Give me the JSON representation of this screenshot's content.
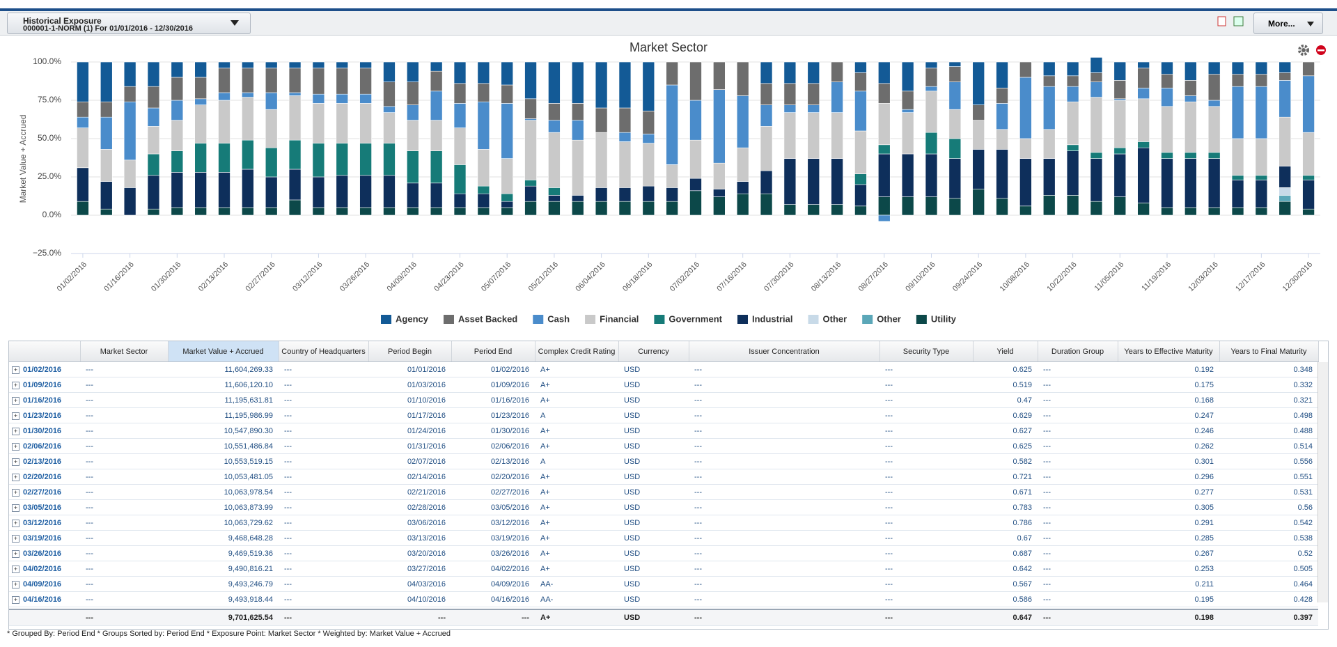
{
  "header": {
    "title": "Historical Exposure",
    "subtitle": "000001-1-NORM (1) For 01/01/2016 - 12/30/2016",
    "more": "More..."
  },
  "chart_data": {
    "type": "bar",
    "stacked": true,
    "title": "Market Sector",
    "y_label": "Market Value + Accrued",
    "categories": [
      "01/02/2016",
      null,
      "01/16/2016",
      null,
      "01/30/2016",
      null,
      "02/13/2016",
      null,
      "02/27/2016",
      null,
      "03/12/2016",
      null,
      "03/26/2016",
      null,
      "04/09/2016",
      null,
      "04/23/2016",
      null,
      "05/07/2016",
      null,
      "05/21/2016",
      null,
      "06/04/2016",
      null,
      "06/18/2016",
      null,
      "07/02/2016",
      null,
      "07/16/2016",
      null,
      "07/30/2016",
      null,
      "08/13/2016",
      null,
      "08/27/2016",
      null,
      "09/10/2016",
      null,
      "09/24/2016",
      null,
      "10/08/2016",
      null,
      "10/22/2016",
      null,
      "11/05/2016",
      null,
      "11/19/2016",
      null,
      "12/03/2016",
      null,
      "12/17/2016",
      null,
      "12/30/2016"
    ],
    "ylim": [
      -25,
      100
    ],
    "yticks": [
      {
        "value": -25,
        "label": "−25.0%"
      },
      {
        "value": 0,
        "label": "0.0%"
      },
      {
        "value": 25,
        "label": "25.0%"
      },
      {
        "value": 50,
        "label": "50.0%"
      },
      {
        "value": 75,
        "label": "75.0%"
      },
      {
        "value": 100,
        "label": "100.0%"
      }
    ],
    "grid": true,
    "legend": "bottom",
    "series": [
      {
        "name": "Agency",
        "color": "#135a96",
        "values": [
          26,
          26,
          16,
          16,
          10,
          10,
          4,
          4,
          4,
          4,
          4,
          4,
          4,
          13,
          13,
          6,
          14,
          14,
          15,
          24,
          27,
          27,
          30,
          30,
          32,
          0,
          0,
          0,
          0,
          14,
          14,
          14,
          0,
          7,
          14,
          19,
          4,
          3,
          28,
          17,
          0,
          9,
          9,
          10,
          12,
          4,
          8,
          12,
          8,
          8,
          8,
          7,
          0
        ]
      },
      {
        "name": "Asset Backed",
        "color": "#6d6d6d",
        "values": [
          10,
          10,
          10,
          14,
          15,
          14,
          16,
          16,
          16,
          16,
          17,
          17,
          17,
          16,
          15,
          13,
          13,
          12,
          12,
          13,
          11,
          11,
          16,
          16,
          15,
          15,
          25,
          18,
          22,
          14,
          14,
          14,
          13,
          12,
          13,
          12,
          12,
          10,
          10,
          10,
          10,
          7,
          7,
          6,
          12,
          13,
          9,
          10,
          17,
          8,
          8,
          5,
          9
        ]
      },
      {
        "name": "Cash",
        "color": "#4a8ccb",
        "values": [
          7,
          21,
          38,
          12,
          13,
          4,
          5,
          3,
          11,
          2,
          6,
          6,
          6,
          4,
          10,
          19,
          16,
          31,
          36,
          1,
          8,
          13,
          0,
          6,
          6,
          52,
          26,
          48,
          34,
          14,
          5,
          5,
          20,
          26,
          -4,
          2,
          3,
          18,
          0,
          17,
          40,
          28,
          10,
          10,
          1,
          7,
          12,
          4,
          4,
          34,
          34,
          24,
          37
        ]
      },
      {
        "name": "Financial",
        "color": "#c9c9c9",
        "values": [
          26,
          21,
          18,
          18,
          20,
          25,
          28,
          28,
          25,
          29,
          26,
          26,
          26,
          20,
          20,
          20,
          24,
          24,
          23,
          39,
          36,
          36,
          36,
          30,
          28,
          15,
          25,
          17,
          22,
          29,
          30,
          30,
          30,
          28,
          27,
          27,
          27,
          19,
          19,
          13,
          13,
          19,
          28,
          36,
          31,
          28,
          30,
          33,
          30,
          24,
          24,
          32,
          28
        ]
      },
      {
        "name": "Government",
        "color": "#167b78",
        "values": [
          0,
          0,
          0,
          14,
          14,
          19,
          19,
          19,
          19,
          19,
          22,
          21,
          21,
          21,
          21,
          21,
          19,
          5,
          5,
          4,
          5,
          0,
          0,
          0,
          0,
          0,
          0,
          0,
          0,
          0,
          0,
          0,
          0,
          7,
          6,
          0,
          14,
          13,
          0,
          0,
          0,
          0,
          4,
          4,
          4,
          4,
          4,
          4,
          4,
          3,
          3,
          0,
          3
        ]
      },
      {
        "name": "Industrial",
        "color": "#0e2f5b",
        "values": [
          22,
          18,
          18,
          22,
          23,
          23,
          23,
          25,
          20,
          20,
          20,
          21,
          21,
          21,
          16,
          16,
          9,
          9,
          4,
          10,
          4,
          4,
          9,
          9,
          10,
          9,
          8,
          5,
          8,
          15,
          30,
          30,
          30,
          14,
          28,
          28,
          28,
          26,
          26,
          32,
          31,
          24,
          29,
          28,
          28,
          36,
          32,
          32,
          32,
          18,
          18,
          14,
          19
        ]
      },
      {
        "name": "Other",
        "color": "#c8dae8",
        "values": [
          0,
          0,
          0,
          0,
          0,
          0,
          0,
          0,
          0,
          0,
          0,
          0,
          0,
          0,
          0,
          0,
          0,
          0,
          0,
          0,
          0,
          0,
          0,
          0,
          0,
          0,
          0,
          0,
          0,
          0,
          0,
          0,
          0,
          0,
          0,
          0,
          0,
          0,
          0,
          0,
          0,
          0,
          0,
          0,
          0,
          0,
          0,
          0,
          0,
          0,
          0,
          5,
          0
        ]
      },
      {
        "name": "Other",
        "color": "#5ba7b8",
        "values": [
          0,
          0,
          0,
          0,
          0,
          0,
          0,
          0,
          0,
          0,
          0,
          0,
          0,
          0,
          0,
          0,
          0,
          0,
          0,
          0,
          0,
          0,
          0,
          0,
          0,
          0,
          0,
          0,
          0,
          0,
          0,
          0,
          0,
          0,
          0,
          0,
          0,
          0,
          0,
          0,
          0,
          0,
          0,
          0,
          0,
          0,
          0,
          0,
          0,
          0,
          0,
          4,
          0
        ]
      },
      {
        "name": "Utility",
        "color": "#0c4849",
        "values": [
          9,
          4,
          0,
          4,
          5,
          5,
          5,
          5,
          5,
          10,
          5,
          5,
          5,
          5,
          5,
          5,
          5,
          5,
          5,
          9,
          9,
          9,
          9,
          9,
          9,
          9,
          16,
          12,
          14,
          14,
          7,
          7,
          7,
          6,
          12,
          12,
          12,
          11,
          17,
          11,
          6,
          13,
          13,
          9,
          12,
          8,
          5,
          5,
          5,
          5,
          5,
          9,
          4
        ]
      }
    ]
  },
  "table": {
    "columns": [
      "Market Sector",
      "Market Value + Accrued",
      "Country of Headquarters",
      "Period Begin",
      "Period End",
      "Complex Credit Rating",
      "Currency",
      "Issuer Concentration",
      "Security Type",
      "Yield",
      "Duration Group",
      "Years to Effective Maturity",
      "Years to Final Maturity"
    ],
    "rows": [
      [
        "01/02/2016",
        "---",
        "11,604,269.33",
        "---",
        "01/01/2016",
        "01/02/2016",
        "A+",
        "USD",
        "---",
        "---",
        "0.625",
        "---",
        "0.192",
        "0.348"
      ],
      [
        "01/09/2016",
        "---",
        "11,606,120.10",
        "---",
        "01/03/2016",
        "01/09/2016",
        "A+",
        "USD",
        "---",
        "---",
        "0.519",
        "---",
        "0.175",
        "0.332"
      ],
      [
        "01/16/2016",
        "---",
        "11,195,631.81",
        "---",
        "01/10/2016",
        "01/16/2016",
        "A+",
        "USD",
        "---",
        "---",
        "0.47",
        "---",
        "0.168",
        "0.321"
      ],
      [
        "01/23/2016",
        "---",
        "11,195,986.99",
        "---",
        "01/17/2016",
        "01/23/2016",
        "A",
        "USD",
        "---",
        "---",
        "0.629",
        "---",
        "0.247",
        "0.498"
      ],
      [
        "01/30/2016",
        "---",
        "10,547,890.30",
        "---",
        "01/24/2016",
        "01/30/2016",
        "A+",
        "USD",
        "---",
        "---",
        "0.627",
        "---",
        "0.246",
        "0.488"
      ],
      [
        "02/06/2016",
        "---",
        "10,551,486.84",
        "---",
        "01/31/2016",
        "02/06/2016",
        "A+",
        "USD",
        "---",
        "---",
        "0.625",
        "---",
        "0.262",
        "0.514"
      ],
      [
        "02/13/2016",
        "---",
        "10,553,519.15",
        "---",
        "02/07/2016",
        "02/13/2016",
        "A",
        "USD",
        "---",
        "---",
        "0.582",
        "---",
        "0.301",
        "0.556"
      ],
      [
        "02/20/2016",
        "---",
        "10,053,481.05",
        "---",
        "02/14/2016",
        "02/20/2016",
        "A+",
        "USD",
        "---",
        "---",
        "0.721",
        "---",
        "0.296",
        "0.551"
      ],
      [
        "02/27/2016",
        "---",
        "10,063,978.54",
        "---",
        "02/21/2016",
        "02/27/2016",
        "A+",
        "USD",
        "---",
        "---",
        "0.671",
        "---",
        "0.277",
        "0.531"
      ],
      [
        "03/05/2016",
        "---",
        "10,063,873.99",
        "---",
        "02/28/2016",
        "03/05/2016",
        "A+",
        "USD",
        "---",
        "---",
        "0.783",
        "---",
        "0.305",
        "0.56"
      ],
      [
        "03/12/2016",
        "---",
        "10,063,729.62",
        "---",
        "03/06/2016",
        "03/12/2016",
        "A+",
        "USD",
        "---",
        "---",
        "0.786",
        "---",
        "0.291",
        "0.542"
      ],
      [
        "03/19/2016",
        "---",
        "9,468,648.28",
        "---",
        "03/13/2016",
        "03/19/2016",
        "A+",
        "USD",
        "---",
        "---",
        "0.67",
        "---",
        "0.285",
        "0.538"
      ],
      [
        "03/26/2016",
        "---",
        "9,469,519.36",
        "---",
        "03/20/2016",
        "03/26/2016",
        "A+",
        "USD",
        "---",
        "---",
        "0.687",
        "---",
        "0.267",
        "0.52"
      ],
      [
        "04/02/2016",
        "---",
        "9,490,816.21",
        "---",
        "03/27/2016",
        "04/02/2016",
        "A+",
        "USD",
        "---",
        "---",
        "0.642",
        "---",
        "0.253",
        "0.505"
      ],
      [
        "04/09/2016",
        "---",
        "9,493,246.79",
        "---",
        "04/03/2016",
        "04/09/2016",
        "AA-",
        "USD",
        "---",
        "---",
        "0.567",
        "---",
        "0.211",
        "0.464"
      ],
      [
        "04/16/2016",
        "---",
        "9,493,918.44",
        "---",
        "04/10/2016",
        "04/16/2016",
        "AA-",
        "USD",
        "---",
        "---",
        "0.586",
        "---",
        "0.195",
        "0.428"
      ]
    ],
    "total": [
      "---",
      "9,701,625.54",
      "---",
      "---",
      "---",
      "A+",
      "USD",
      "---",
      "---",
      "0.647",
      "---",
      "0.198",
      "0.397"
    ]
  },
  "footer": {
    "note": "* Grouped By: Period End  * Groups Sorted by: Period End  * Exposure Point: Market Sector  * Weighted by: Market Value + Accrued"
  }
}
